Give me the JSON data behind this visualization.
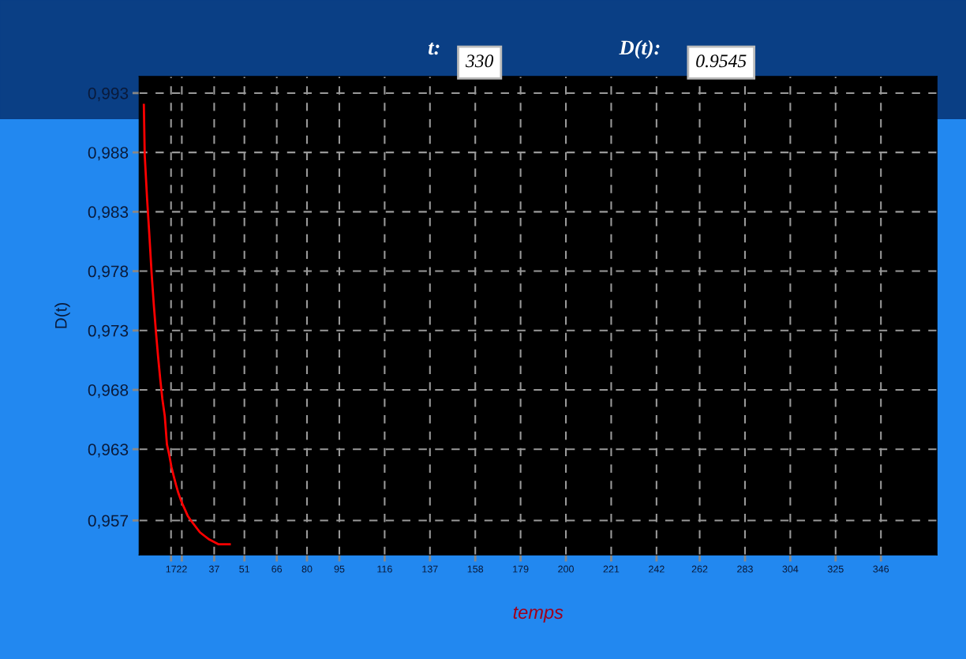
{
  "chart_data": {
    "type": "line",
    "xlabel": "temps",
    "ylabel": "D(t)",
    "annotations": [
      "t:",
      "330",
      "D(t):",
      "0.9545"
    ],
    "x": [
      4.4,
      4.8,
      5.9,
      7.0,
      8.0,
      9.0,
      10.0,
      11.0,
      12.0,
      13.0,
      14.1,
      15.1,
      16.2,
      17.2,
      18.3,
      19.3,
      20.4,
      21.4,
      22.5,
      23.5,
      24.7,
      26.2,
      28.3,
      30.4,
      32.5,
      34.7,
      36.8,
      38.9,
      44.2
    ],
    "series": [
      {
        "color": "#ff0000",
        "values": [
          0.992,
          0.9878,
          0.9841,
          0.9809,
          0.9778,
          0.9752,
          0.9729,
          0.9708,
          0.9689,
          0.9672,
          0.9658,
          0.9634,
          0.9625,
          0.9615,
          0.9607,
          0.96,
          0.9593,
          0.9588,
          0.9583,
          0.9579,
          0.9574,
          0.957,
          0.9565,
          0.956,
          0.9557,
          0.9554,
          0.9552,
          0.955,
          0.955
        ]
      }
    ],
    "xlim": [
      2.2,
      372
    ],
    "ylim": [
      0.9541,
      0.9944
    ],
    "xticks": [
      17,
      22,
      37,
      51,
      66,
      80,
      95,
      116,
      137,
      158,
      179,
      200,
      221,
      242,
      262,
      283,
      304,
      325,
      346
    ],
    "yticks": [
      {
        "value": 0.993,
        "label": "0,993"
      },
      {
        "value": 0.988,
        "label": "0,988"
      },
      {
        "value": 0.983,
        "label": "0,983"
      },
      {
        "value": 0.978,
        "label": "0,978"
      },
      {
        "value": 0.973,
        "label": "0,973"
      },
      {
        "value": 0.968,
        "label": "0,968"
      },
      {
        "value": 0.963,
        "label": "0,963"
      },
      {
        "value": 0.957,
        "label": "0,957"
      }
    ],
    "grid": true,
    "legend": false,
    "marker": "none",
    "line_style": "solid"
  }
}
